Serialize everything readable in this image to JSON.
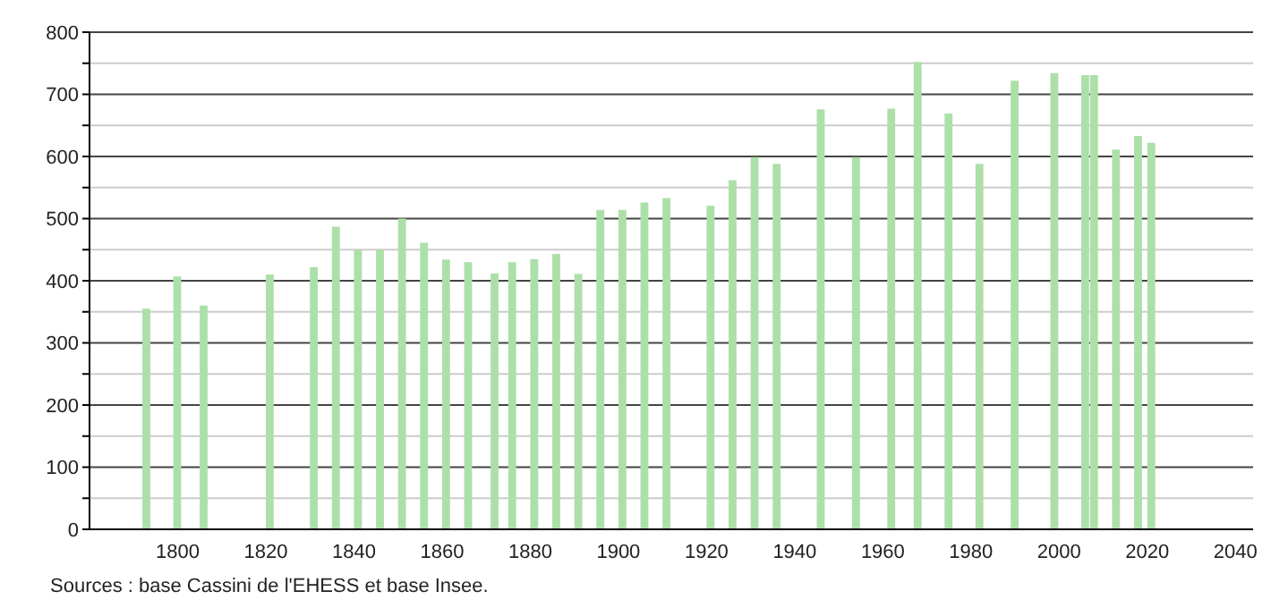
{
  "chart_data": {
    "type": "bar",
    "x": [
      1793,
      1800,
      1806,
      1821,
      1831,
      1836,
      1841,
      1846,
      1851,
      1856,
      1861,
      1866,
      1872,
      1876,
      1881,
      1886,
      1891,
      1896,
      1901,
      1906,
      1911,
      1921,
      1926,
      1931,
      1936,
      1946,
      1954,
      1962,
      1968,
      1975,
      1982,
      1990,
      1999,
      2006,
      2008,
      2013,
      2018,
      2021
    ],
    "values": [
      355,
      407,
      360,
      410,
      422,
      487,
      450,
      450,
      500,
      461,
      434,
      430,
      412,
      430,
      435,
      443,
      411,
      514,
      514,
      526,
      533,
      521,
      562,
      599,
      588,
      676,
      599,
      677,
      752,
      669,
      588,
      722,
      734,
      731,
      731,
      611,
      633,
      622
    ],
    "color": "#ade0a9",
    "xlim": [
      1780,
      2044
    ],
    "xticks": [
      1800,
      1820,
      1840,
      1860,
      1880,
      1900,
      1920,
      1940,
      1960,
      1980,
      2000,
      2020,
      2040
    ],
    "ylim": [
      0,
      800
    ],
    "yticks": [
      0,
      {
        "value": 50,
        "label": null
      },
      100,
      {
        "value": 150,
        "label": null
      },
      200,
      {
        "value": 250,
        "label": null
      },
      300,
      {
        "value": 350,
        "label": null
      },
      400,
      {
        "value": 450,
        "label": null
      },
      500,
      {
        "value": 550,
        "label": null
      },
      600,
      {
        "value": 650,
        "label": null
      },
      700,
      {
        "value": 750,
        "label": null
      },
      800
    ],
    "grid": "y",
    "annotations": [
      "Sources : base Cassini de l'EHESS et base Insee."
    ]
  }
}
